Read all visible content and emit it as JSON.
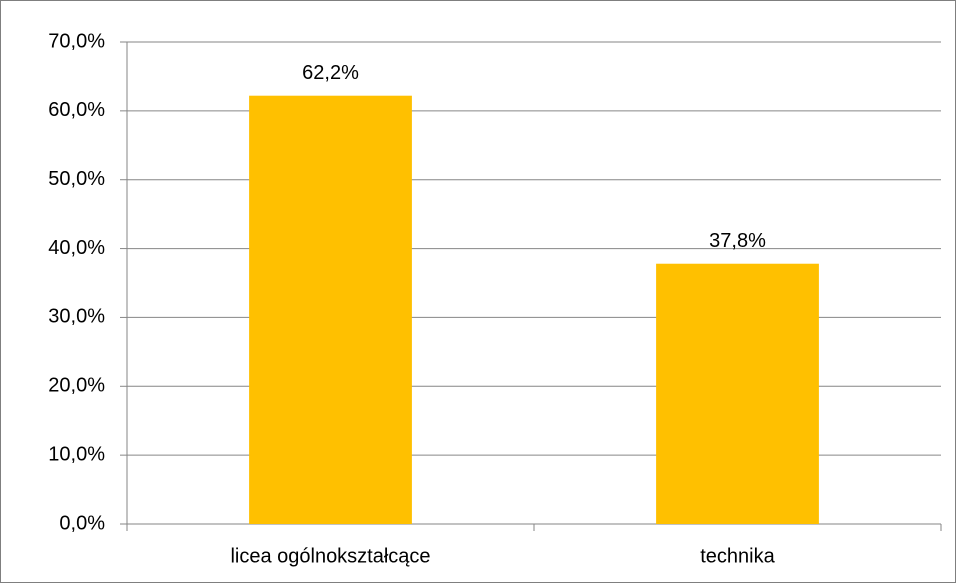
{
  "chart_data": {
    "type": "bar",
    "categories": [
      "licea ogólnokształcące",
      "technika"
    ],
    "values": [
      62.2,
      37.8
    ],
    "value_labels": [
      "62,2%",
      "37,8%"
    ],
    "color": "#ffc000",
    "ylim": [
      0,
      70
    ],
    "yticks": [
      {
        "value": 0,
        "label": "0,0%"
      },
      {
        "value": 10,
        "label": "10,0%"
      },
      {
        "value": 20,
        "label": "20,0%"
      },
      {
        "value": 30,
        "label": "30,0%"
      },
      {
        "value": 40,
        "label": "40,0%"
      },
      {
        "value": 50,
        "label": "50,0%"
      },
      {
        "value": 60,
        "label": "60,0%"
      },
      {
        "value": 70,
        "label": "70,0%"
      }
    ],
    "grid": true
  }
}
